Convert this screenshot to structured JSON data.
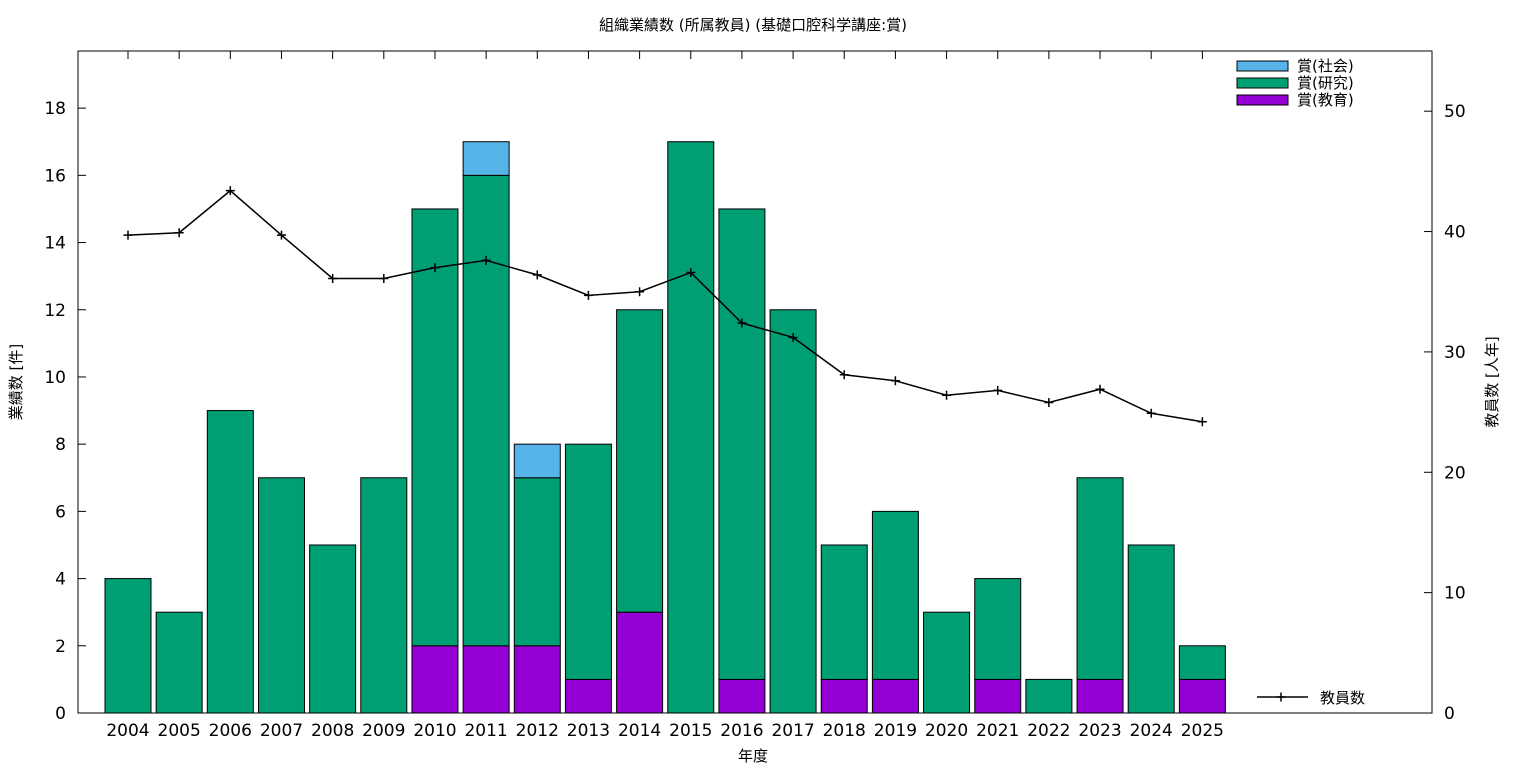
{
  "chart_data": {
    "type": "bar",
    "title": "組織業績数 (所属教員) (基礎口腔科学講座:賞)",
    "xlabel": "年度",
    "ylabel": "業績数 [件]",
    "y2label": "教員数 [人年]",
    "categories": [
      "2004",
      "2005",
      "2006",
      "2007",
      "2008",
      "2009",
      "2010",
      "2011",
      "2012",
      "2013",
      "2014",
      "2015",
      "2016",
      "2017",
      "2018",
      "2019",
      "2020",
      "2021",
      "2022",
      "2023",
      "2024",
      "2025"
    ],
    "ylim": [
      0,
      19.7
    ],
    "y2lim": [
      0,
      55
    ],
    "yticks": [
      "0",
      "2",
      "4",
      "6",
      "8",
      "10",
      "12",
      "14",
      "16",
      "18"
    ],
    "y2ticks": [
      "0",
      "10",
      "20",
      "30",
      "40",
      "50"
    ],
    "stacked": true,
    "series": [
      {
        "name": "賞(教育)",
        "color": "#9400d3",
        "values": [
          0,
          0,
          0,
          0,
          0,
          0,
          2,
          2,
          2,
          1,
          3,
          0,
          1,
          0,
          1,
          1,
          0,
          1,
          0,
          1,
          0,
          1
        ]
      },
      {
        "name": "賞(研究)",
        "color": "#009e73",
        "values": [
          4,
          3,
          9,
          7,
          5,
          7,
          13,
          14,
          5,
          7,
          9,
          17,
          14,
          12,
          4,
          5,
          3,
          3,
          1,
          6,
          5,
          1
        ]
      },
      {
        "name": "賞(社会)",
        "color": "#56b4e9",
        "values": [
          0,
          0,
          0,
          0,
          0,
          0,
          0,
          1,
          1,
          0,
          0,
          0,
          0,
          0,
          0,
          0,
          0,
          0,
          0,
          0,
          0,
          0
        ]
      }
    ],
    "line_series": {
      "name": "教員数",
      "axis": "y2",
      "color": "#000000",
      "values": [
        39.7,
        39.9,
        43.4,
        39.7,
        36.1,
        36.1,
        37.0,
        37.6,
        36.4,
        34.7,
        35.0,
        36.6,
        32.4,
        31.2,
        28.1,
        27.6,
        26.4,
        26.8,
        25.8,
        26.9,
        24.9,
        24.2
      ]
    },
    "legend_position": "top-right"
  }
}
